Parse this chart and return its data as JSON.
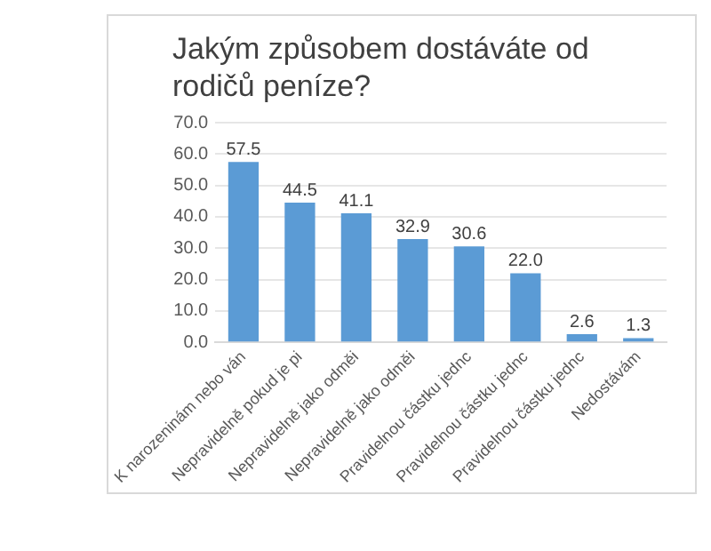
{
  "chart_data": {
    "type": "bar",
    "title": "Jakým způsobem dostáváte od rodičů peníze?",
    "categories": [
      "K narozeninám nebo ván",
      "Nepravidelně pokud je pi",
      "Nepravidelně jako odměi",
      "Nepravidelně jako odměi",
      "Pravidelnou částku jednc",
      "Pravidelnou částku jednc",
      "Pravidelnou částku jednc",
      "Nedostávám"
    ],
    "values": [
      57.5,
      44.5,
      41.1,
      32.9,
      30.6,
      22.0,
      2.6,
      1.3
    ],
    "value_labels": [
      "57.5",
      "44.5",
      "41.1",
      "32.9",
      "30.6",
      "22.0",
      "2.6",
      "1.3"
    ],
    "color": "#5b9bd5",
    "ylim": [
      0,
      70
    ],
    "yticks": [
      {
        "value": 0,
        "label": "0.0"
      },
      {
        "value": 10,
        "label": "10.0"
      },
      {
        "value": 20,
        "label": "20.0"
      },
      {
        "value": 30,
        "label": "30.0"
      },
      {
        "value": 40,
        "label": "40.0"
      },
      {
        "value": 50,
        "label": "50.0"
      },
      {
        "value": 60,
        "label": "60.0"
      },
      {
        "value": 70,
        "label": "70.0"
      }
    ],
    "grid": "y"
  }
}
